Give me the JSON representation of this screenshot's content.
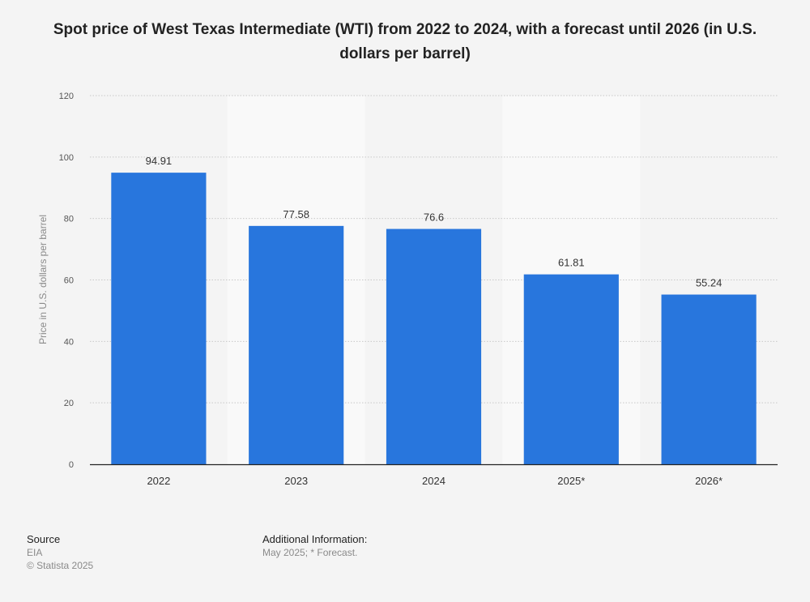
{
  "chart_data": {
    "type": "bar",
    "title": "Spot price of West Texas Intermediate (WTI) from 2022 to 2024, with a forecast until 2026 (in U.S. dollars per barrel)",
    "xlabel": "",
    "ylabel": "Price in U.S. dollars per barrel",
    "categories": [
      "2022",
      "2023",
      "2024",
      "2025*",
      "2026*"
    ],
    "values": [
      94.91,
      77.58,
      76.6,
      61.81,
      55.24
    ],
    "value_labels": [
      "94.91",
      "77.58",
      "76.6",
      "61.81",
      "55.24"
    ],
    "ylim": [
      0,
      120
    ],
    "yticks": [
      0,
      20,
      40,
      60,
      80,
      100,
      120
    ],
    "grid": true,
    "bar_color": "#2876dd",
    "alternate_band_color": "#f9f9f9"
  },
  "footer": {
    "source_heading": "Source",
    "source_name": "EIA",
    "copyright": "© Statista 2025",
    "info_heading": "Additional Information:",
    "info_text": "May 2025; * Forecast."
  }
}
